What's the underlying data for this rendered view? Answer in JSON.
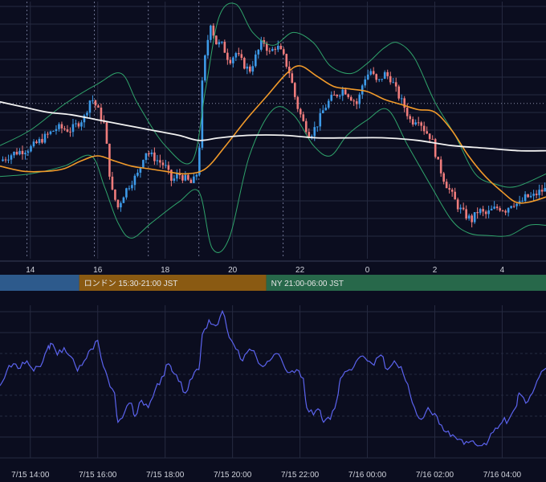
{
  "colors": {
    "background": "#0b0d1f",
    "grid": "#262a40",
    "candle_up": "#3d9ae8",
    "candle_down": "#ef7c7c",
    "bollinger": "#2fa36b",
    "ma_orange": "#f19a2a",
    "ma_white": "#f2f2f2",
    "oscillator": "#5b63ee",
    "session_tokyo": "#2d5a8c",
    "session_london": "#8a5a12",
    "session_ny": "#27684a"
  },
  "chart_data": [
    {
      "type": "candlestick",
      "title": "",
      "x_ticks": [
        "14",
        "16",
        "18",
        "20",
        "22",
        "0",
        "2",
        "4"
      ],
      "x_tick_hours": [
        14,
        16,
        18,
        20,
        22,
        24,
        26,
        28
      ],
      "x_range_hours": [
        13.1,
        29.3
      ],
      "y_range": [
        0,
        100
      ],
      "session_separators_hours": [
        13.9,
        15.9,
        17.5,
        19.0,
        21.5
      ],
      "reference_level": 60.4,
      "close_path": [
        [
          13.1,
          38
        ],
        [
          13.5,
          41
        ],
        [
          14.0,
          43
        ],
        [
          14.4,
          47
        ],
        [
          14.8,
          51
        ],
        [
          15.2,
          50
        ],
        [
          15.6,
          55
        ],
        [
          15.8,
          63
        ],
        [
          16.0,
          58
        ],
        [
          16.2,
          52
        ],
        [
          16.4,
          27
        ],
        [
          16.6,
          20
        ],
        [
          16.8,
          26
        ],
        [
          17.0,
          30
        ],
        [
          17.2,
          33
        ],
        [
          17.4,
          42
        ],
        [
          17.6,
          40
        ],
        [
          17.8,
          38
        ],
        [
          18.0,
          36
        ],
        [
          18.2,
          30
        ],
        [
          18.4,
          33
        ],
        [
          18.6,
          31
        ],
        [
          18.8,
          29
        ],
        [
          19.0,
          35
        ],
        [
          19.05,
          62
        ],
        [
          19.2,
          80
        ],
        [
          19.35,
          92
        ],
        [
          19.5,
          84
        ],
        [
          19.7,
          83
        ],
        [
          19.9,
          77
        ],
        [
          20.1,
          80
        ],
        [
          20.3,
          76
        ],
        [
          20.5,
          73
        ],
        [
          20.7,
          79
        ],
        [
          20.9,
          85
        ],
        [
          21.1,
          80
        ],
        [
          21.3,
          83
        ],
        [
          21.5,
          79
        ],
        [
          21.7,
          72
        ],
        [
          21.9,
          60
        ],
        [
          22.1,
          53
        ],
        [
          22.3,
          48
        ],
        [
          22.5,
          52
        ],
        [
          22.7,
          58
        ],
        [
          22.9,
          62
        ],
        [
          23.1,
          64
        ],
        [
          23.3,
          66
        ],
        [
          23.5,
          63
        ],
        [
          23.7,
          60
        ],
        [
          23.9,
          70
        ],
        [
          24.1,
          73
        ],
        [
          24.3,
          68
        ],
        [
          24.5,
          72
        ],
        [
          24.7,
          70
        ],
        [
          24.9,
          64
        ],
        [
          25.1,
          59
        ],
        [
          25.3,
          53
        ],
        [
          25.5,
          55
        ],
        [
          25.7,
          50
        ],
        [
          25.9,
          47
        ],
        [
          26.1,
          37
        ],
        [
          26.3,
          30
        ],
        [
          26.5,
          25
        ],
        [
          26.7,
          20
        ],
        [
          26.9,
          17
        ],
        [
          27.1,
          15
        ],
        [
          27.3,
          19
        ],
        [
          27.5,
          17
        ],
        [
          27.7,
          19
        ],
        [
          27.9,
          20
        ],
        [
          28.1,
          19
        ],
        [
          28.3,
          22
        ],
        [
          28.5,
          21
        ],
        [
          28.7,
          24
        ],
        [
          28.9,
          24
        ],
        [
          29.1,
          26
        ],
        [
          29.3,
          27
        ]
      ],
      "series": [
        {
          "name": "",
          "kind": "bollinger_upper",
          "values": [
            [
              13.1,
              44
            ],
            [
              14.0,
              50
            ],
            [
              15.0,
              60
            ],
            [
              16.0,
              68
            ],
            [
              16.7,
              72
            ],
            [
              17.2,
              60
            ],
            [
              18.0,
              44
            ],
            [
              18.8,
              38
            ],
            [
              19.2,
              66
            ],
            [
              19.6,
              94
            ],
            [
              20.1,
              99
            ],
            [
              20.6,
              88
            ],
            [
              21.2,
              83
            ],
            [
              21.8,
              88
            ],
            [
              22.4,
              84
            ],
            [
              22.9,
              75
            ],
            [
              23.5,
              72
            ],
            [
              24.0,
              76
            ],
            [
              24.5,
              82
            ],
            [
              24.9,
              84
            ],
            [
              25.4,
              78
            ],
            [
              26.0,
              61
            ],
            [
              26.6,
              48
            ],
            [
              27.2,
              33
            ],
            [
              27.8,
              29
            ],
            [
              28.4,
              28
            ],
            [
              29.3,
              33
            ]
          ]
        },
        {
          "name": "",
          "kind": "bollinger_lower",
          "values": [
            [
              13.1,
              32
            ],
            [
              14.0,
              33
            ],
            [
              15.0,
              36
            ],
            [
              15.8,
              40
            ],
            [
              16.2,
              28
            ],
            [
              16.6,
              14
            ],
            [
              17.0,
              8
            ],
            [
              17.6,
              14
            ],
            [
              18.4,
              22
            ],
            [
              19.0,
              26
            ],
            [
              19.4,
              4
            ],
            [
              19.9,
              8
            ],
            [
              20.5,
              40
            ],
            [
              21.2,
              58
            ],
            [
              21.8,
              56
            ],
            [
              22.4,
              44
            ],
            [
              22.9,
              40
            ],
            [
              23.4,
              48
            ],
            [
              24.0,
              54
            ],
            [
              24.6,
              58
            ],
            [
              25.2,
              44
            ],
            [
              25.9,
              28
            ],
            [
              26.5,
              15
            ],
            [
              27.0,
              10
            ],
            [
              27.6,
              9
            ],
            [
              28.2,
              9
            ],
            [
              28.8,
              13
            ],
            [
              29.3,
              13
            ]
          ]
        },
        {
          "name": "",
          "kind": "moving_average",
          "values": [
            [
              13.1,
              36
            ],
            [
              13.8,
              34
            ],
            [
              14.5,
              34
            ],
            [
              15.0,
              35
            ],
            [
              15.5,
              38
            ],
            [
              16.0,
              40
            ],
            [
              16.5,
              38
            ],
            [
              17.0,
              36
            ],
            [
              17.5,
              35
            ],
            [
              18.0,
              34
            ],
            [
              18.6,
              33
            ],
            [
              19.2,
              35
            ],
            [
              19.8,
              44
            ],
            [
              20.4,
              54
            ],
            [
              21.0,
              63
            ],
            [
              21.6,
              72
            ],
            [
              22.0,
              75
            ],
            [
              22.5,
              71
            ],
            [
              23.0,
              67
            ],
            [
              23.5,
              66
            ],
            [
              24.0,
              65
            ],
            [
              24.5,
              62
            ],
            [
              25.0,
              60
            ],
            [
              25.5,
              58
            ],
            [
              26.0,
              57
            ],
            [
              26.5,
              50
            ],
            [
              27.0,
              40
            ],
            [
              27.5,
              32
            ],
            [
              28.0,
              26
            ],
            [
              28.4,
              22
            ],
            [
              28.8,
              22
            ],
            [
              29.3,
              24
            ]
          ]
        },
        {
          "name": "",
          "kind": "moving_average_long",
          "values": [
            [
              13.1,
              61
            ],
            [
              13.8,
              59
            ],
            [
              14.5,
              57
            ],
            [
              15.2,
              56
            ],
            [
              16.0,
              54
            ],
            [
              16.8,
              52
            ],
            [
              17.6,
              50
            ],
            [
              18.4,
              48
            ],
            [
              19.0,
              46
            ],
            [
              19.6,
              47
            ],
            [
              20.5,
              48
            ],
            [
              21.5,
              48
            ],
            [
              22.5,
              47
            ],
            [
              23.5,
              47
            ],
            [
              24.5,
              47
            ],
            [
              25.5,
              46
            ],
            [
              26.5,
              44
            ],
            [
              27.5,
              43
            ],
            [
              28.5,
              42
            ],
            [
              29.3,
              42
            ]
          ]
        }
      ]
    },
    {
      "type": "line",
      "title": "",
      "x_range_hours": [
        13.1,
        29.3
      ],
      "y_range": [
        0,
        100
      ],
      "x_ticks": [
        "7/15 14:00",
        "7/15 16:00",
        "7/15 18:00",
        "7/15 20:00",
        "7/15 22:00",
        "7/16 00:00",
        "7/16 02:00",
        "7/16 04:00"
      ],
      "x_tick_hours": [
        14,
        16,
        18,
        20,
        22,
        24,
        26,
        28
      ],
      "series": [
        {
          "name": "",
          "values": [
            [
              13.1,
              45
            ],
            [
              13.3,
              55
            ],
            [
              13.5,
              60
            ],
            [
              13.7,
              57
            ],
            [
              13.9,
              62
            ],
            [
              14.1,
              55
            ],
            [
              14.3,
              58
            ],
            [
              14.5,
              70
            ],
            [
              14.6,
              74
            ],
            [
              14.8,
              66
            ],
            [
              15.0,
              71
            ],
            [
              15.2,
              65
            ],
            [
              15.4,
              55
            ],
            [
              15.6,
              62
            ],
            [
              15.8,
              70
            ],
            [
              16.0,
              76
            ],
            [
              16.1,
              64
            ],
            [
              16.3,
              50
            ],
            [
              16.5,
              40
            ],
            [
              16.6,
              20
            ],
            [
              16.8,
              27
            ],
            [
              17.0,
              33
            ],
            [
              17.1,
              24
            ],
            [
              17.3,
              35
            ],
            [
              17.5,
              30
            ],
            [
              17.7,
              42
            ],
            [
              17.9,
              51
            ],
            [
              18.1,
              60
            ],
            [
              18.2,
              55
            ],
            [
              18.4,
              48
            ],
            [
              18.6,
              40
            ],
            [
              18.8,
              50
            ],
            [
              19.0,
              56
            ],
            [
              19.1,
              80
            ],
            [
              19.3,
              90
            ],
            [
              19.5,
              86
            ],
            [
              19.7,
              96
            ],
            [
              19.9,
              78
            ],
            [
              20.1,
              70
            ],
            [
              20.3,
              62
            ],
            [
              20.5,
              70
            ],
            [
              20.7,
              65
            ],
            [
              20.9,
              58
            ],
            [
              21.1,
              62
            ],
            [
              21.3,
              67
            ],
            [
              21.5,
              60
            ],
            [
              21.7,
              54
            ],
            [
              21.9,
              56
            ],
            [
              22.1,
              50
            ],
            [
              22.2,
              30
            ],
            [
              22.4,
              25
            ],
            [
              22.6,
              28
            ],
            [
              22.7,
              20
            ],
            [
              22.9,
              22
            ],
            [
              23.1,
              36
            ],
            [
              23.2,
              50
            ],
            [
              23.4,
              55
            ],
            [
              23.6,
              58
            ],
            [
              23.8,
              65
            ],
            [
              24.0,
              62
            ],
            [
              24.2,
              59
            ],
            [
              24.4,
              66
            ],
            [
              24.6,
              56
            ],
            [
              24.8,
              62
            ],
            [
              25.0,
              58
            ],
            [
              25.2,
              46
            ],
            [
              25.4,
              30
            ],
            [
              25.6,
              22
            ],
            [
              25.8,
              30
            ],
            [
              26.0,
              26
            ],
            [
              26.2,
              18
            ],
            [
              26.4,
              14
            ],
            [
              26.6,
              10
            ],
            [
              26.8,
              8
            ],
            [
              27.0,
              6
            ],
            [
              27.2,
              5
            ],
            [
              27.4,
              4
            ],
            [
              27.6,
              8
            ],
            [
              27.8,
              16
            ],
            [
              28.0,
              20
            ],
            [
              28.2,
              22
            ],
            [
              28.4,
              30
            ],
            [
              28.5,
              40
            ],
            [
              28.7,
              33
            ],
            [
              28.9,
              40
            ],
            [
              29.1,
              51
            ],
            [
              29.3,
              57
            ]
          ]
        }
      ]
    }
  ],
  "sessions": [
    {
      "label": "",
      "start": 13.1,
      "end": 15.45
    },
    {
      "label": "ロンドン 15:30-21:00 JST",
      "start": 15.45,
      "end": 21.0
    },
    {
      "label": "NY 21:00-06:00 JST",
      "start": 21.0,
      "end": 29.3
    }
  ]
}
